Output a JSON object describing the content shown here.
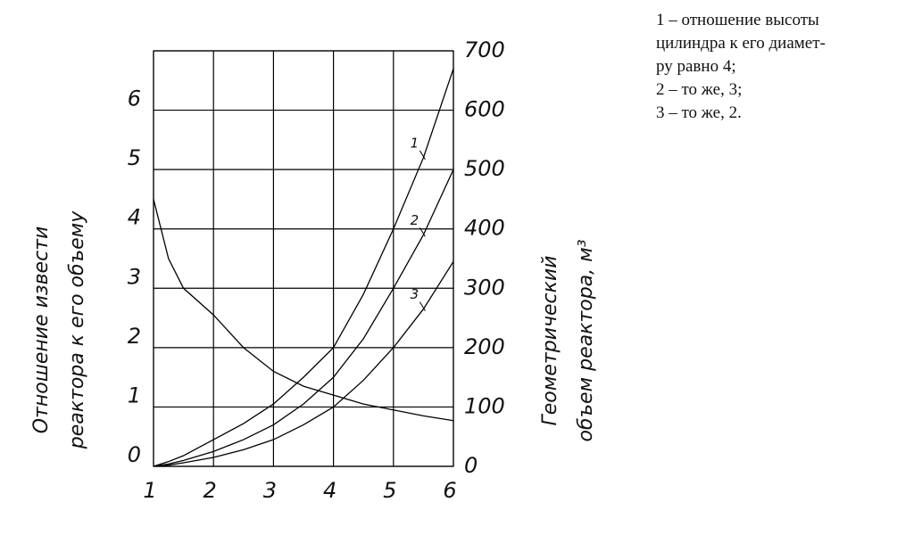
{
  "chart_data": {
    "type": "line",
    "x": [
      1,
      1.25,
      1.5,
      2,
      2.5,
      3,
      3.5,
      4,
      4.5,
      5,
      5.5,
      6
    ],
    "series": [
      {
        "color": "#000000",
        "values": [
          4.5,
          3.5,
          3.0,
          2.55,
          2.0,
          1.6,
          1.35,
          1.2,
          1.05,
          0.95,
          0.85,
          0.77
        ]
      },
      {
        "name": "1",
        "color": "#000000",
        "axis": "y2",
        "values": [
          0,
          8,
          18,
          45,
          72,
          105,
          150,
          200,
          290,
          400,
          520,
          670
        ]
      },
      {
        "name": "2",
        "color": "#000000",
        "axis": "y2",
        "values": [
          0,
          4,
          10,
          25,
          45,
          70,
          105,
          150,
          215,
          300,
          390,
          500
        ]
      },
      {
        "name": "3",
        "color": "#000000",
        "axis": "y2",
        "values": [
          0,
          2,
          6,
          15,
          28,
          45,
          70,
          100,
          145,
          200,
          265,
          345
        ]
      }
    ],
    "xlim": [
      1,
      6
    ],
    "xticks": [
      1,
      2,
      3,
      4,
      5,
      6
    ],
    "ylim": [
      0,
      7
    ],
    "yticks": [
      0,
      1,
      2,
      3,
      4,
      5,
      6
    ],
    "y2lim": [
      0,
      700
    ],
    "y2ticks": [
      0,
      100,
      200,
      300,
      400,
      500,
      600,
      700
    ],
    "ylabel": [
      "Отношение извести",
      "реактора к его объему"
    ],
    "y2label": [
      "Геометрический",
      "объем реактора, м³"
    ],
    "grid": true,
    "note": [
      "1 – отношение высоты",
      "цилиндра к его диамет-",
      "ру равно 4;",
      "2 – то же, 3;",
      "3 – то же, 2."
    ]
  }
}
